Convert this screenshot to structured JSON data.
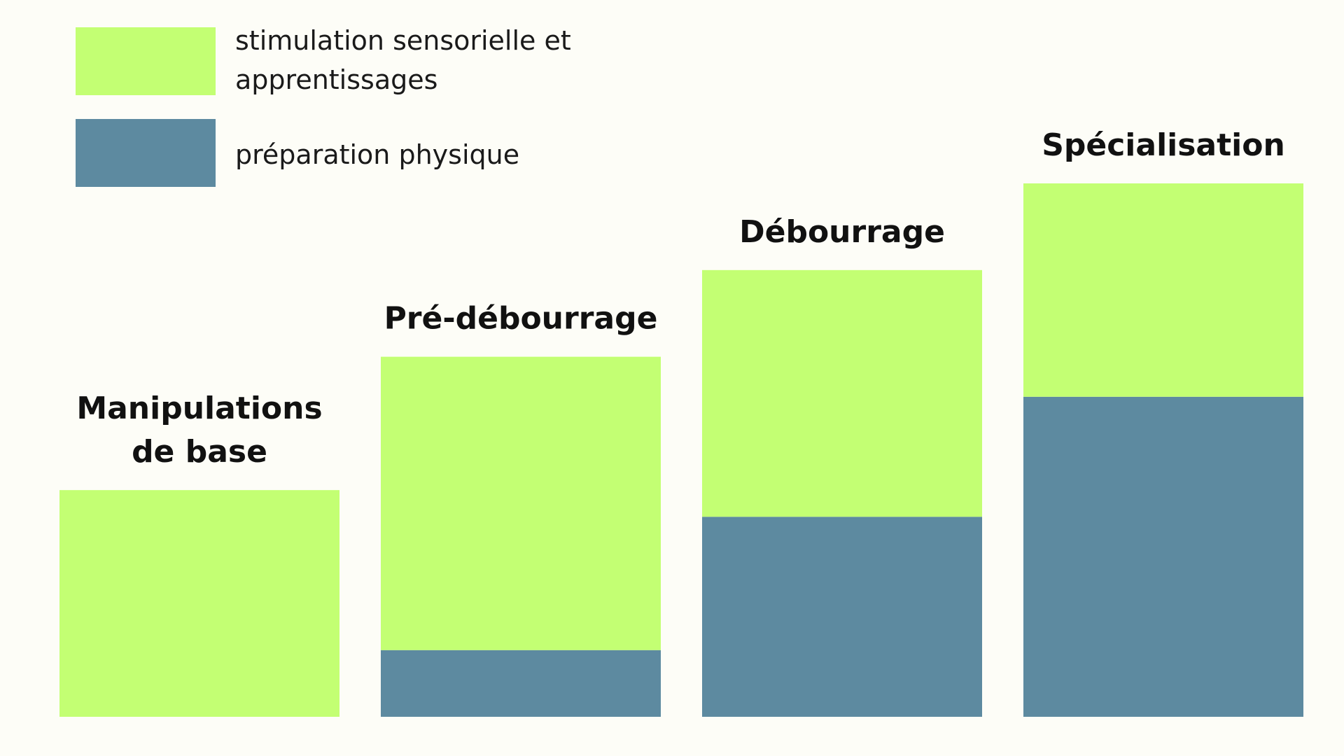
{
  "chart_data": {
    "type": "bar",
    "stacked": true,
    "categories": [
      [
        "Manipulations",
        "de base"
      ],
      [
        "Pré-débourrage"
      ],
      [
        "Débourrage"
      ],
      [
        "Spécialisation"
      ]
    ],
    "series": [
      {
        "name": "préparation physique",
        "color": "#5d8aa0",
        "values": [
          0,
          1.0,
          3.0,
          4.8
        ]
      },
      {
        "name": [
          "stimulation sensorielle et",
          "apprentissages"
        ],
        "color": "#c3ff73",
        "values": [
          3.4,
          4.4,
          3.7,
          3.2
        ]
      }
    ],
    "legend_order": [
      1,
      0
    ],
    "legend_position": "top-left",
    "ylim": [
      0,
      8.0
    ],
    "grid": false,
    "axes_visible": false
  }
}
